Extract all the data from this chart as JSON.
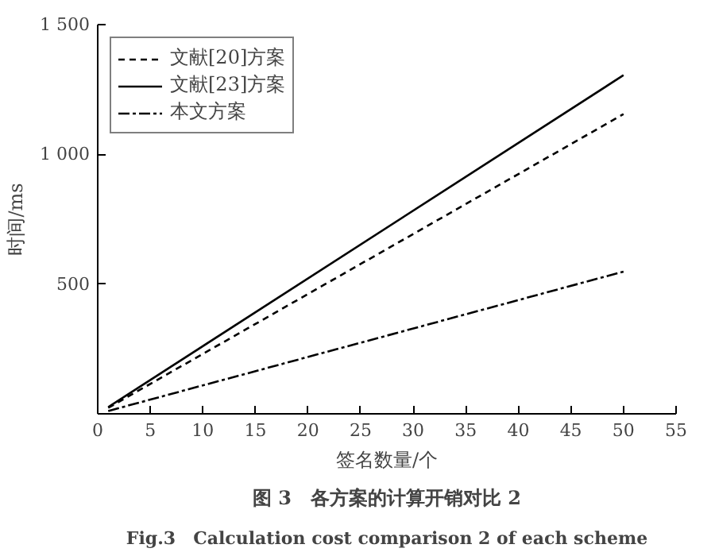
{
  "chart_data": {
    "type": "line",
    "xlabel": "签名数量/个",
    "ylabel": "时间/ms",
    "x": [
      1,
      50
    ],
    "series": [
      {
        "name": "文献[20]方案",
        "color": "#000000",
        "values": [
          23,
          1155
        ],
        "line_style": "dashed"
      },
      {
        "name": "文献[23]方案",
        "color": "#000000",
        "values": [
          26,
          1305
        ],
        "line_style": "solid"
      },
      {
        "name": "本文方案",
        "color": "#000000",
        "values": [
          11,
          548
        ],
        "line_style": "dashdot"
      }
    ],
    "xlim": [
      0,
      55
    ],
    "xticks": [
      0,
      5,
      10,
      15,
      20,
      25,
      30,
      35,
      40,
      45,
      50,
      55
    ],
    "ylim": [
      0,
      1500
    ],
    "yticks": [
      {
        "value": 500,
        "label": "500"
      },
      {
        "value": 1000,
        "label": "1 000"
      },
      {
        "value": 1500,
        "label": "1 500"
      }
    ],
    "grid": false,
    "legend": "top left",
    "marker": "none",
    "annotations": [
      "图 3　各方案的计算开销对比 2",
      "Fig.3　Calculation cost comparison 2 of each scheme"
    ]
  }
}
